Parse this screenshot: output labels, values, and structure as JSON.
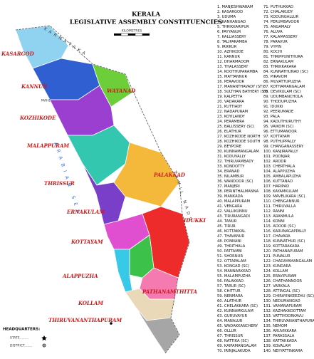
{
  "map": {
    "title": "KERALA",
    "subtitle": "LEGISLATIVE ASSEMBLY CONSTITUENCIES",
    "scale_label": "KILOMETRES",
    "neighbors": [
      "KARNATAKA",
      "TAMIL NADU"
    ],
    "sea": "ARABIAN SEA",
    "enclave": "MAHE",
    "districts": [
      {
        "name": "KASARGOD",
        "color": "#8fd3f0"
      },
      {
        "name": "KANNUR",
        "color": "#2f5fd0"
      },
      {
        "name": "WAYANAD",
        "color": "#6ccf3a"
      },
      {
        "name": "KOZHIKODE",
        "color": "#9b3fd0"
      },
      {
        "name": "MALAPPURAM",
        "color": "#33c7b0"
      },
      {
        "name": "PALAKKAD",
        "color": "#f4b93a"
      },
      {
        "name": "THRISSUR",
        "color": "#7a3fc8"
      },
      {
        "name": "ERNAKULAM",
        "color": "#e04fd0"
      },
      {
        "name": "IDUKKI",
        "color": "#ee2b2b"
      },
      {
        "name": "KOTTAYAM",
        "color": "#3cc24a"
      },
      {
        "name": "ALAPPUZHA",
        "color": "#38c8e8"
      },
      {
        "name": "PATHANAMTHITTA",
        "color": "#f47ab0"
      },
      {
        "name": "KOLLAM",
        "color": "#ead9b8"
      },
      {
        "name": "THIRUVANANTHAPURAM",
        "color": "#a6a6a6"
      }
    ],
    "legend": {
      "title": "HEADQUARTERS:",
      "items": [
        "STATE.........",
        "DISTRICT........"
      ]
    },
    "constituencies": [
      "1. MANJESHWARAM",
      "2. KASARGOD",
      "3. UDUMA",
      "4. KANHANGAD",
      "5. THRIKKARIPUR",
      "6. PAYYANUR",
      "7. KALLIASSERY",
      "8. TALIPARAMBA",
      "9. IRIKKUR",
      "10. AZHIKODE",
      "11. KANNUR",
      "12. DHARMADOM",
      "13. THALASSERY",
      "14. KOOTHUPARAMBA",
      "15. MATTANNUR",
      "16. PERAVOOR",
      "17. MANANTHAVADY (ST)",
      "18. SULTHAN BATHERY (ST)",
      "19. KALPETTA",
      "20. VADAKARA",
      "21. KUTTIADY",
      "22. NADAPURAM",
      "23. KOYILANDY",
      "24. PERAMBRA",
      "25. BALUSSERY (SC)",
      "26. ELATHUR",
      "27. KOZHIKODE NORTH",
      "28. KOZHIKODE SOUTH",
      "29. BEYPORE",
      "30. KUNNAMANGALAM",
      "31. KODUVALLY",
      "32. THIRUVAMBADY",
      "33. KONDOTTY",
      "34. ERANAD",
      "35. NILAMBUR",
      "36. WANDOOR (SC)",
      "37. MANJERI",
      "38. PERINTHALMANNA",
      "39. MANKADA",
      "40. MALAPPURAM",
      "41. VENGARA",
      "42. VALLIKUNNU",
      "43. TIRURANGADI",
      "44. TANUR",
      "45. TIRUR",
      "46. KOTTAKKAL",
      "47. THAVANUR",
      "48. PONNANI",
      "49. THRITHALA",
      "50. PATTAMBI",
      "51. SHORNUR",
      "52. OTTAPALAM",
      "53. KONGAD (SC)",
      "54. MANNARKKAD",
      "55. MALAMPUZHA",
      "56. PALAKKAD",
      "57. TARUR (SC)",
      "58. CHITTUR",
      "59. NENMARA",
      "60. ALATHUR",
      "61. CHELAKKARA (SC)",
      "62. KUNNAMKULAM",
      "63. GURUVAYUR",
      "64. MANALUR",
      "65. WADAKKANCHERY",
      "66. OLLUR",
      "67. THRISSUR",
      "68. NATTIKA (SC)",
      "69. KAIPAMANGALAM",
      "70. IRINJALAKUDA",
      "71. PUTHUKKAD",
      "72. CHALAKUDY",
      "73. KODUNGALLUR",
      "74. PERUMBAVOOR",
      "75. ANGAMALY",
      "76. ALUVA",
      "77. KALAMASSERY",
      "78. PARAVUR",
      "79. VYPIN",
      "80. KOCHI",
      "81. THRIPPUNITHURA",
      "82. ERNAKULAM",
      "83. THRIKKAKARA",
      "84. KUNNATHUNAD (SC)",
      "85. PIRAVOM",
      "86. MUVATTUPUZHA",
      "87. KOTHAMANGALAM",
      "88. DEVIKULAM (SC)",
      "89. UDUMBANCHOLA",
      "90. THODUPUZHA",
      "91. IDUKKI",
      "92. PEERUMADE",
      "93. PALA",
      "94. KADUTHURUTHY",
      "95. VAIKOM (SC)",
      "96. ETTUMANOOR",
      "97. KOTTAYAM",
      "98. PUTHUPPALLY",
      "99. CHANGANASSERY",
      "100. KANJIRAPALLY",
      "101. POONJAR",
      "102. AROOR",
      "103. CHERTHALA",
      "104. ALAPPUZHA",
      "105. AMBALAPUZHA",
      "106. KUTTANAD",
      "107. HARIPAD",
      "108. KAYAMKULAM",
      "109. MAVELIKARA (SC)",
      "110. CHENGANNUR",
      "111. THIRUVALLA",
      "112. RANNI",
      "113. ARANMULA",
      "114. KONNI",
      "115. ADOOR (SC)",
      "116. KARUNAGAPPALLY",
      "117. CHAVARA",
      "118. KUNNATHUR (SC)",
      "119. KOTTARAKARA",
      "120. PATHANAPURAM",
      "121. PUNALUR",
      "122. CHADAYAMANGALAM",
      "123. KUNDARA",
      "124. KOLLAM",
      "125. ERAVIPURAM",
      "126. CHATHANNOOR",
      "127. VARKALA",
      "128. ATTINGAL (SC)",
      "129. CHIRAYINKEEZHU (SC)",
      "130. NEDUMANGAD",
      "131. VAMANAPURAM",
      "132. KAZHAKKOOTTAM",
      "133. VATTIYOORKAVU",
      "134. THIRUVANANTHAPURAM",
      "135. NEMOM",
      "136. ARUVIKKARA",
      "137. PARASSALA",
      "138. KATTAKKADA",
      "139. KOVALAM",
      "140. NEYYATTINKARA"
    ]
  }
}
